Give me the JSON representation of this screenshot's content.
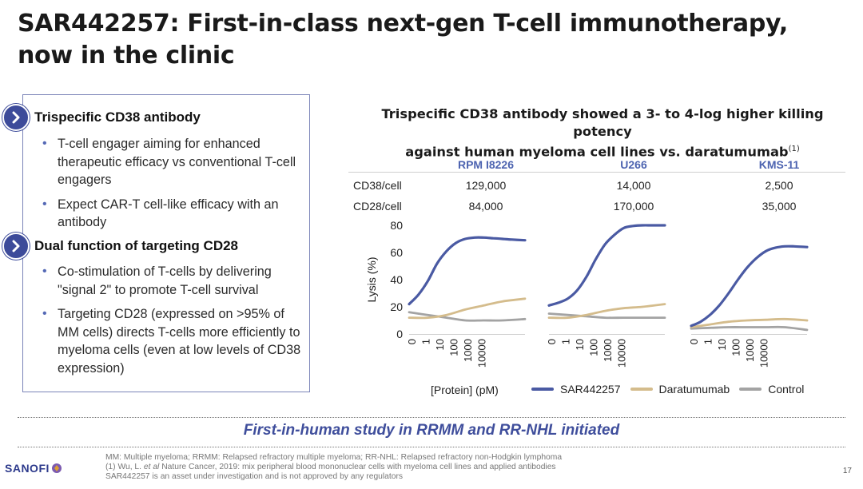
{
  "slide": {
    "title_line1": "SAR442257: First-in-class next-gen T-cell immunotherapy,",
    "title_line2": "now in the clinic",
    "page_number": "17"
  },
  "left_panel": {
    "sections": [
      {
        "heading": "Trispecific CD38 antibody",
        "bullets": [
          "T-cell engager aiming for enhanced therapeutic efficacy vs conventional T-cell engagers",
          "Expect CAR-T cell-like efficacy with an antibody"
        ]
      },
      {
        "heading": "Dual function of targeting CD28",
        "bullets": [
          "Co-stimulation of T-cells by delivering \"signal 2\" to promote T-cell survival",
          "Targeting CD28 (expressed on >95% of MM cells) directs T-cells more efficiently to myeloma cells (even at low levels of CD38 expression)"
        ]
      }
    ]
  },
  "chart_title": {
    "line1": "Trispecific CD38 antibody showed a 3- to 4-log higher killing potency",
    "line2": "against human myeloma cell lines vs. daratumumab",
    "footnote_ref": "(1)"
  },
  "table": {
    "columns": [
      "RPM I8226",
      "U266",
      "KMS-11"
    ],
    "rows": [
      {
        "label": "CD38/cell",
        "values": [
          "129,000",
          "14,000",
          "2,500"
        ]
      },
      {
        "label": "CD28/cell",
        "values": [
          "84,000",
          "170,000",
          "35,000"
        ]
      }
    ]
  },
  "chart_data": {
    "type": "line",
    "ylabel": "Lysis (%)",
    "xlabel": "[Protein] (pM)",
    "ylim": [
      0,
      80
    ],
    "yticks": [
      "0",
      "20",
      "40",
      "60",
      "80"
    ],
    "x_tick_labels": [
      "0",
      "1",
      "10",
      "100",
      "1000",
      "10000"
    ],
    "x_log_range": [
      -1,
      5.2
    ],
    "colors": {
      "SAR442257": "#4a5aa3",
      "Daratumumab": "#d4bc8c",
      "Control": "#a3a3a3"
    },
    "legend": [
      "SAR442257",
      "Daratumumab",
      "Control"
    ],
    "panels": [
      {
        "name": "RPM I8226",
        "series": [
          {
            "name": "SAR442257",
            "x": [
              -1,
              -0.5,
              0,
              0.5,
              1,
              1.5,
              2,
              2.5,
              3,
              3.5,
              4,
              4.5,
              5.2
            ],
            "y": [
              22,
              29,
              39,
              52,
              61,
              67,
              70,
              71,
              71,
              70.5,
              70,
              69.5,
              69
            ]
          },
          {
            "name": "Daratumumab",
            "x": [
              -1,
              0,
              1,
              2,
              3,
              4,
              5.2
            ],
            "y": [
              12,
              12,
              14,
              18,
              21,
              24,
              26
            ]
          },
          {
            "name": "Control",
            "x": [
              -1,
              0,
              1,
              2,
              3,
              4,
              5.2
            ],
            "y": [
              16,
              14,
              12,
              10,
              10,
              10,
              11
            ]
          }
        ]
      },
      {
        "name": "U266",
        "series": [
          {
            "name": "SAR442257",
            "x": [
              -1,
              -0.5,
              0,
              0.5,
              1,
              1.5,
              2,
              2.5,
              3,
              3.5,
              4,
              4.5,
              5.2
            ],
            "y": [
              21,
              23,
              26,
              32,
              42,
              55,
              66,
              73,
              78,
              79.5,
              80,
              80,
              80
            ]
          },
          {
            "name": "Daratumumab",
            "x": [
              -1,
              0,
              1,
              2,
              3,
              4,
              5.2
            ],
            "y": [
              12,
              12,
              14,
              17,
              19,
              20,
              22
            ]
          },
          {
            "name": "Control",
            "x": [
              -1,
              0,
              1,
              2,
              3,
              4,
              5.2
            ],
            "y": [
              15,
              14,
              13,
              12,
              12,
              12,
              12
            ]
          }
        ]
      },
      {
        "name": "KMS-11",
        "series": [
          {
            "name": "SAR442257",
            "x": [
              -1,
              -0.5,
              0,
              0.5,
              1,
              1.5,
              2,
              2.5,
              3,
              3.5,
              4,
              4.5,
              5.2
            ],
            "y": [
              6,
              9,
              14,
              21,
              30,
              40,
              49,
              56,
              61,
              63.5,
              64.5,
              64.5,
              64
            ]
          },
          {
            "name": "Daratumumab",
            "x": [
              -1,
              0,
              1,
              2,
              3,
              4,
              5.2
            ],
            "y": [
              5,
              7,
              9,
              10,
              10.5,
              11,
              10
            ]
          },
          {
            "name": "Control",
            "x": [
              -1,
              0,
              1,
              2,
              3,
              4,
              5.2
            ],
            "y": [
              4,
              4.5,
              5,
              5,
              5,
              5,
              3
            ]
          }
        ]
      }
    ]
  },
  "banner": {
    "text": "First-in-human study in RRMM and RR-NHL initiated"
  },
  "footnotes": {
    "line1": "MM: Multiple myeloma; RRMM: Relapsed refractory multiple myeloma; RR-NHL: Relapsed refractory non-Hodgkin lymphoma",
    "line2_prefix": "(1) Wu, L. ",
    "line2_em": "et al",
    "line2_rest": " Nature Cancer, 2019: mix peripheral blood mononuclear cells with myeloma cell lines and applied antibodies",
    "line3": "SAR442257 is an asset under investigation and is not approved by any regulators"
  },
  "logo": {
    "text": "SANOFI"
  }
}
